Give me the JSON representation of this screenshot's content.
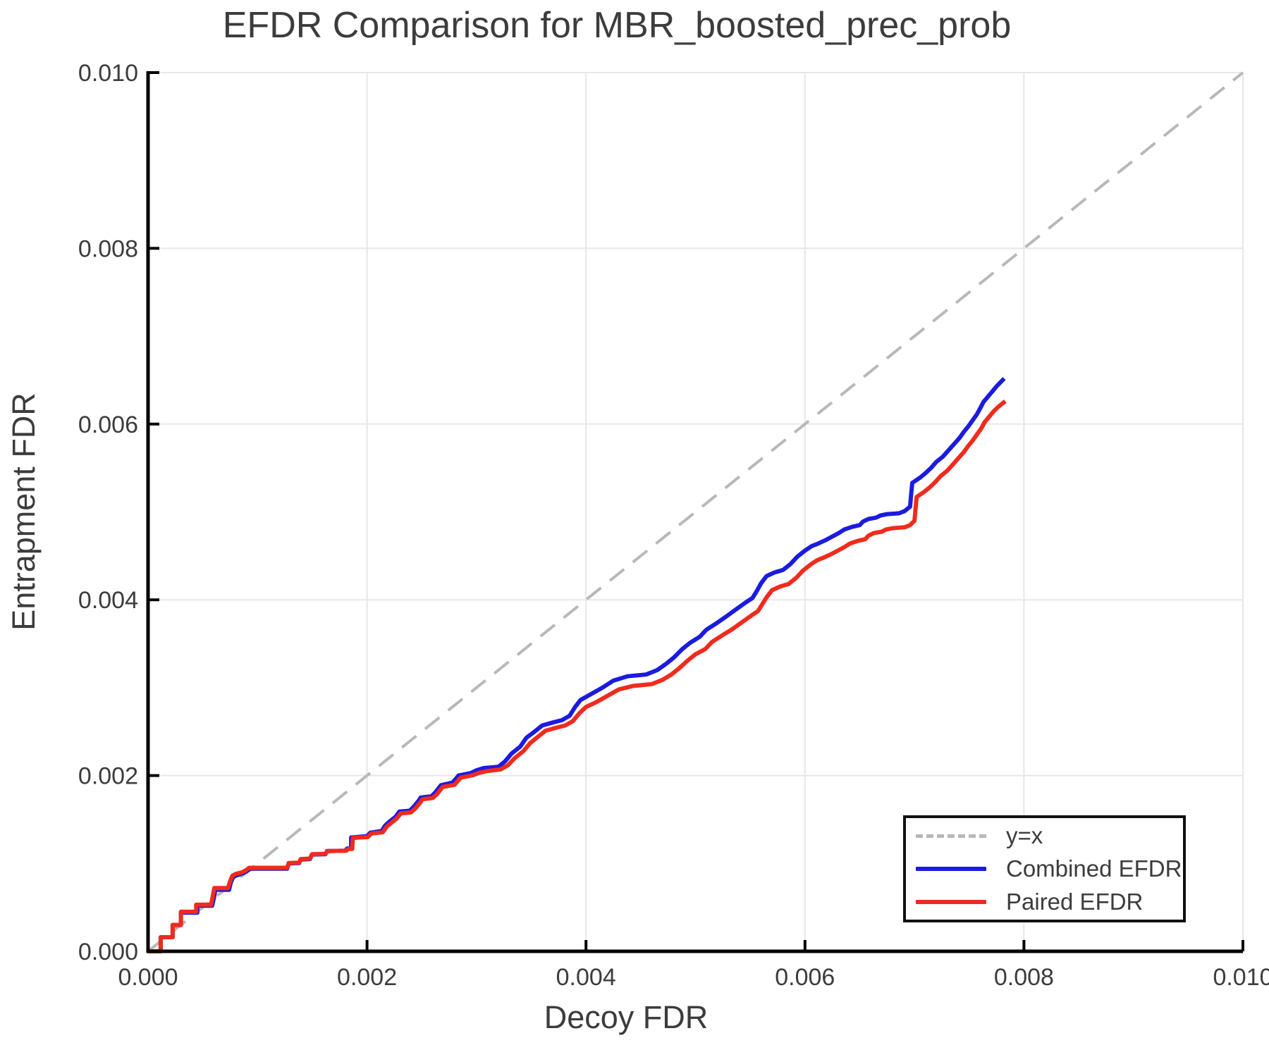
{
  "title": "EFDR Comparison for MBR_boosted_prec_prob",
  "axes": {
    "xlabel": "Decoy FDR",
    "ylabel": "Entrapment FDR",
    "xlim": [
      0,
      0.01
    ],
    "ylim": [
      0,
      0.01
    ],
    "x_ticks": {
      "values": [
        0,
        0.002,
        0.004,
        0.006,
        0.008,
        0.01
      ],
      "labels": [
        "0.000",
        "0.002",
        "0.004",
        "0.006",
        "0.008",
        "0.010"
      ]
    },
    "y_ticks": {
      "values": [
        0,
        0.002,
        0.004,
        0.006,
        0.008,
        0.01
      ],
      "labels": [
        "0.000",
        "0.002",
        "0.004",
        "0.006",
        "0.008",
        "0.010"
      ]
    },
    "grid": true,
    "grid_color": "#e7e7e7",
    "spine_color": "#000000",
    "text_color": "#3c3c3c"
  },
  "legend": {
    "position": "lower right",
    "items": [
      {
        "label": "y=x",
        "color": "#b8b8b8",
        "dashed": true
      },
      {
        "label": "Combined EFDR",
        "color": "#1b1be0",
        "dashed": false
      },
      {
        "label": "Paired EFDR",
        "color": "#f02b1d",
        "dashed": false
      }
    ]
  },
  "chart_data": {
    "type": "line",
    "title": "EFDR Comparison for MBR_boosted_prec_prob",
    "xlabel": "Decoy FDR",
    "ylabel": "Entrapment FDR",
    "xlim": [
      0,
      0.01
    ],
    "ylim": [
      0,
      0.01
    ],
    "legend_position": "lower right",
    "series": [
      {
        "name": "y=x",
        "color": "#b8b8b8",
        "style": "dashed",
        "width": 4,
        "points": [
          [
            0,
            0
          ],
          [
            0.01,
            0.01
          ]
        ]
      },
      {
        "name": "Combined EFDR",
        "color": "#1b1be0",
        "style": "solid",
        "width": 6,
        "points": [
          [
            0,
            0
          ],
          [
            0.000115,
            0
          ],
          [
            0.000115,
            0.00016
          ],
          [
            0.000225,
            0.00016
          ],
          [
            0.000225,
            0.0003
          ],
          [
            0.0003,
            0.0003
          ],
          [
            0.0003,
            0.00044
          ],
          [
            0.00045,
            0.00044
          ],
          [
            0.00045,
            0.00052
          ],
          [
            0.000585,
            0.00052
          ],
          [
            0.0006,
            0.0006
          ],
          [
            0.000615,
            0.0007
          ],
          [
            0.00074,
            0.0007
          ],
          [
            0.000755,
            0.00078
          ],
          [
            0.000775,
            0.00084
          ],
          [
            0.0008,
            0.00086
          ],
          [
            0.00087,
            0.00089
          ],
          [
            0.0009,
            0.00091
          ],
          [
            0.000935,
            0.00094
          ],
          [
            0.00127,
            0.00094
          ],
          [
            0.001285,
            0.001
          ],
          [
            0.00138,
            0.001005
          ],
          [
            0.001395,
            0.001045
          ],
          [
            0.00148,
            0.00105
          ],
          [
            0.001495,
            0.0011
          ],
          [
            0.00162,
            0.001105
          ],
          [
            0.001635,
            0.00114
          ],
          [
            0.0018,
            0.001145
          ],
          [
            0.00182,
            0.00117
          ],
          [
            0.001855,
            0.00117
          ],
          [
            0.001855,
            0.001295
          ],
          [
            0.002,
            0.00131
          ],
          [
            0.00203,
            0.00135
          ],
          [
            0.002135,
            0.00137
          ],
          [
            0.002165,
            0.00143
          ],
          [
            0.00221,
            0.00148
          ],
          [
            0.00226,
            0.00153
          ],
          [
            0.002295,
            0.00159
          ],
          [
            0.00239,
            0.0016
          ],
          [
            0.00243,
            0.00165
          ],
          [
            0.002475,
            0.00172
          ],
          [
            0.00249,
            0.00175
          ],
          [
            0.00259,
            0.001765
          ],
          [
            0.002625,
            0.00181
          ],
          [
            0.002675,
            0.00189
          ],
          [
            0.00278,
            0.00192
          ],
          [
            0.00281,
            0.00196
          ],
          [
            0.002835,
            0.002
          ],
          [
            0.00295,
            0.00203
          ],
          [
            0.003,
            0.00206
          ],
          [
            0.003065,
            0.002085
          ],
          [
            0.0032,
            0.0021
          ],
          [
            0.00326,
            0.00216
          ],
          [
            0.00332,
            0.00225
          ],
          [
            0.0034,
            0.00233
          ],
          [
            0.003455,
            0.00243
          ],
          [
            0.00353,
            0.0025
          ],
          [
            0.0036,
            0.00257
          ],
          [
            0.0037,
            0.002605
          ],
          [
            0.00378,
            0.00263
          ],
          [
            0.00385,
            0.00268
          ],
          [
            0.0039,
            0.00278
          ],
          [
            0.00395,
            0.00286
          ],
          [
            0.00405,
            0.00293
          ],
          [
            0.00415,
            0.003
          ],
          [
            0.00425,
            0.00308
          ],
          [
            0.00438,
            0.00313
          ],
          [
            0.00455,
            0.00315
          ],
          [
            0.00465,
            0.0032
          ],
          [
            0.00473,
            0.00327
          ],
          [
            0.0048,
            0.00334
          ],
          [
            0.00488,
            0.00344
          ],
          [
            0.00495,
            0.00351
          ],
          [
            0.00504,
            0.00358
          ],
          [
            0.0051,
            0.00366
          ],
          [
            0.0052,
            0.00374
          ],
          [
            0.00528,
            0.00381
          ],
          [
            0.00538,
            0.0039
          ],
          [
            0.00547,
            0.00398
          ],
          [
            0.00552,
            0.00402
          ],
          [
            0.00556,
            0.0041
          ],
          [
            0.0056,
            0.00419
          ],
          [
            0.00565,
            0.00427
          ],
          [
            0.00572,
            0.00431
          ],
          [
            0.0058,
            0.00434
          ],
          [
            0.00587,
            0.00441
          ],
          [
            0.00593,
            0.00449
          ],
          [
            0.006,
            0.00456
          ],
          [
            0.00606,
            0.00461
          ],
          [
            0.00612,
            0.00464
          ],
          [
            0.00619,
            0.00468
          ],
          [
            0.00625,
            0.00472
          ],
          [
            0.00631,
            0.00476
          ],
          [
            0.00636,
            0.0048
          ],
          [
            0.00643,
            0.00483
          ],
          [
            0.0065,
            0.00485
          ],
          [
            0.00653,
            0.00489
          ],
          [
            0.00658,
            0.00492
          ],
          [
            0.00665,
            0.004935
          ],
          [
            0.00669,
            0.00496
          ],
          [
            0.00675,
            0.004975
          ],
          [
            0.00686,
            0.004985
          ],
          [
            0.00691,
            0.00501
          ],
          [
            0.00696,
            0.00506
          ],
          [
            0.00697,
            0.0052
          ],
          [
            0.00698,
            0.00533
          ],
          [
            0.00705,
            0.00539
          ],
          [
            0.0071,
            0.00544
          ],
          [
            0.00715,
            0.0055
          ],
          [
            0.0072,
            0.00557
          ],
          [
            0.00726,
            0.00563
          ],
          [
            0.00731,
            0.0057
          ],
          [
            0.00736,
            0.00577
          ],
          [
            0.00741,
            0.00584
          ],
          [
            0.00745,
            0.00591
          ],
          [
            0.00749,
            0.00597
          ],
          [
            0.00753,
            0.00604
          ],
          [
            0.00757,
            0.00611
          ],
          [
            0.0076,
            0.00618
          ],
          [
            0.00763,
            0.00625
          ],
          [
            0.00767,
            0.00631
          ],
          [
            0.00771,
            0.00637
          ],
          [
            0.00775,
            0.00643
          ],
          [
            0.00779,
            0.00648
          ],
          [
            0.00782,
            0.00652
          ]
        ]
      },
      {
        "name": "Paired EFDR",
        "color": "#f02b1d",
        "style": "solid",
        "width": 6,
        "points": [
          [
            0,
            0
          ],
          [
            0.000115,
            0
          ],
          [
            0.000115,
            0.00016
          ],
          [
            0.000225,
            0.00016
          ],
          [
            0.000225,
            0.0003
          ],
          [
            0.0003,
            0.0003
          ],
          [
            0.0003,
            0.00045
          ],
          [
            0.00044,
            0.00045
          ],
          [
            0.00044,
            0.00053
          ],
          [
            0.000575,
            0.00053
          ],
          [
            0.00059,
            0.00062
          ],
          [
            0.000605,
            0.00072
          ],
          [
            0.00073,
            0.00072
          ],
          [
            0.00075,
            0.0008
          ],
          [
            0.00077,
            0.00086
          ],
          [
            0.0008,
            0.00088
          ],
          [
            0.00086,
            0.0009
          ],
          [
            0.00089,
            0.00092
          ],
          [
            0.000925,
            0.00095
          ],
          [
            0.00127,
            0.00095
          ],
          [
            0.001285,
            0.001005
          ],
          [
            0.00138,
            0.00101
          ],
          [
            0.001395,
            0.00105
          ],
          [
            0.00148,
            0.001055
          ],
          [
            0.0015,
            0.001105
          ],
          [
            0.00162,
            0.00111
          ],
          [
            0.00164,
            0.00114
          ],
          [
            0.00181,
            0.001145
          ],
          [
            0.00183,
            0.001165
          ],
          [
            0.001865,
            0.001165
          ],
          [
            0.00187,
            0.00129
          ],
          [
            0.002005,
            0.0013
          ],
          [
            0.00204,
            0.00134
          ],
          [
            0.002145,
            0.001355
          ],
          [
            0.00218,
            0.00142
          ],
          [
            0.00222,
            0.00146
          ],
          [
            0.00227,
            0.00151
          ],
          [
            0.00231,
            0.00157
          ],
          [
            0.0024,
            0.00158
          ],
          [
            0.002445,
            0.00163
          ],
          [
            0.00249,
            0.0017
          ],
          [
            0.002505,
            0.00173
          ],
          [
            0.0026,
            0.001745
          ],
          [
            0.00264,
            0.00179
          ],
          [
            0.00269,
            0.00187
          ],
          [
            0.0028,
            0.001895
          ],
          [
            0.00283,
            0.00194
          ],
          [
            0.002855,
            0.001975
          ],
          [
            0.00297,
            0.002005
          ],
          [
            0.00302,
            0.00203
          ],
          [
            0.00309,
            0.00205
          ],
          [
            0.00322,
            0.00207
          ],
          [
            0.00329,
            0.00212
          ],
          [
            0.00335,
            0.0022
          ],
          [
            0.00343,
            0.00228
          ],
          [
            0.00349,
            0.00237
          ],
          [
            0.00356,
            0.00244
          ],
          [
            0.00363,
            0.00251
          ],
          [
            0.00373,
            0.002545
          ],
          [
            0.00381,
            0.00257
          ],
          [
            0.00388,
            0.00262
          ],
          [
            0.00394,
            0.00271
          ],
          [
            0.004,
            0.00278
          ],
          [
            0.0041,
            0.00284
          ],
          [
            0.0042,
            0.00291
          ],
          [
            0.0043,
            0.00298
          ],
          [
            0.00443,
            0.00302
          ],
          [
            0.0046,
            0.00304
          ],
          [
            0.0047,
            0.00309
          ],
          [
            0.00478,
            0.00315
          ],
          [
            0.00485,
            0.00322
          ],
          [
            0.00493,
            0.00331
          ],
          [
            0.005,
            0.00338
          ],
          [
            0.00509,
            0.00344
          ],
          [
            0.00515,
            0.00352
          ],
          [
            0.00525,
            0.0036
          ],
          [
            0.00533,
            0.00366
          ],
          [
            0.00543,
            0.00375
          ],
          [
            0.00552,
            0.00383
          ],
          [
            0.00557,
            0.00387
          ],
          [
            0.00561,
            0.00395
          ],
          [
            0.00565,
            0.00403
          ],
          [
            0.0057,
            0.00411
          ],
          [
            0.00577,
            0.00415
          ],
          [
            0.00585,
            0.00418
          ],
          [
            0.00592,
            0.00425
          ],
          [
            0.00598,
            0.00433
          ],
          [
            0.00605,
            0.0044
          ],
          [
            0.00611,
            0.00445
          ],
          [
            0.00617,
            0.00448
          ],
          [
            0.00624,
            0.00452
          ],
          [
            0.0063,
            0.00456
          ],
          [
            0.00636,
            0.0046
          ],
          [
            0.00641,
            0.00464
          ],
          [
            0.00648,
            0.00467
          ],
          [
            0.00655,
            0.00469
          ],
          [
            0.00658,
            0.00473
          ],
          [
            0.00663,
            0.00476
          ],
          [
            0.0067,
            0.004775
          ],
          [
            0.00674,
            0.0048
          ],
          [
            0.0068,
            0.004815
          ],
          [
            0.00691,
            0.004825
          ],
          [
            0.00696,
            0.00485
          ],
          [
            0.007,
            0.0049
          ],
          [
            0.00701,
            0.00504
          ],
          [
            0.00702,
            0.00517
          ],
          [
            0.00709,
            0.00523
          ],
          [
            0.00714,
            0.00528
          ],
          [
            0.00719,
            0.00534
          ],
          [
            0.00724,
            0.00541
          ],
          [
            0.0073,
            0.00547
          ],
          [
            0.00735,
            0.00554
          ],
          [
            0.0074,
            0.00561
          ],
          [
            0.00745,
            0.00568
          ],
          [
            0.00749,
            0.00575
          ],
          [
            0.00753,
            0.00581
          ],
          [
            0.00757,
            0.00588
          ],
          [
            0.00761,
            0.00595
          ],
          [
            0.00764,
            0.00602
          ],
          [
            0.00768,
            0.00608
          ],
          [
            0.00772,
            0.00614
          ],
          [
            0.00776,
            0.00619
          ],
          [
            0.0078,
            0.00623
          ],
          [
            0.00783,
            0.00626
          ]
        ]
      }
    ]
  }
}
